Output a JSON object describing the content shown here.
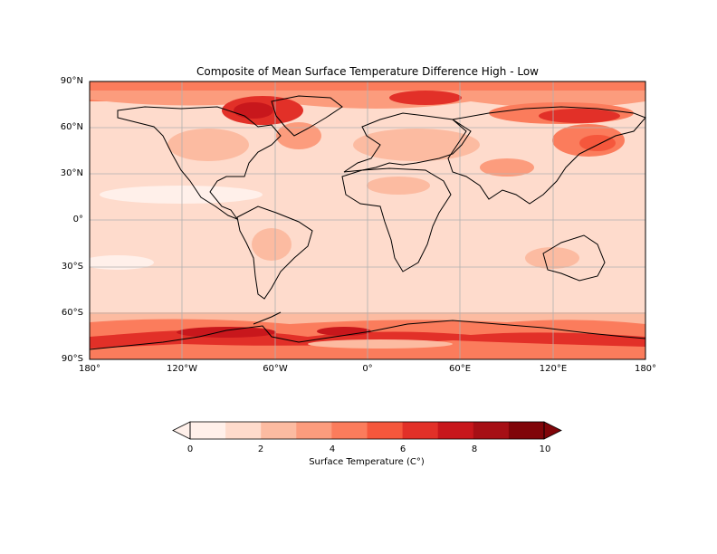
{
  "title": "Composite of Mean Surface Temperature Difference High - Low",
  "lat_ticks": [
    "90°N",
    "60°N",
    "30°N",
    "0°",
    "30°S",
    "60°S",
    "90°S"
  ],
  "lon_ticks": [
    "180°",
    "120°W",
    "60°W",
    "0°",
    "60°E",
    "120°E",
    "180°"
  ],
  "colorbar": {
    "label": "Surface Temperature (C°)",
    "ticks": [
      "0",
      "2",
      "4",
      "6",
      "8",
      "10"
    ],
    "levels": [
      0,
      1,
      2,
      3,
      4,
      5,
      6,
      7,
      8,
      9,
      10
    ],
    "colors": [
      "#fff0ea",
      "#fedbcc",
      "#fcbba1",
      "#fc9c7d",
      "#fb7c5c",
      "#f5573c",
      "#e23028",
      "#c8171c",
      "#a60f15",
      "#800509"
    ],
    "extend": "both"
  },
  "grid": true,
  "projection": "PlateCarree"
}
